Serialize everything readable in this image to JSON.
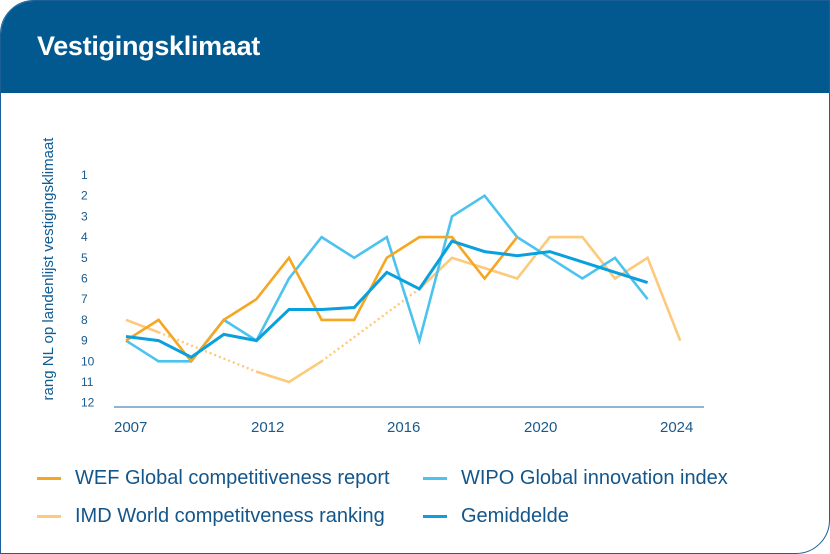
{
  "header": {
    "title": "Vestigingsklimaat"
  },
  "colors": {
    "header_bg": "#01598f",
    "wef": "#f5a623",
    "wipo": "#4cc3ee",
    "imd": "#fdc97a",
    "avg": "#0aa0de",
    "axis": "#6f9cc0",
    "text": "#14568a"
  },
  "chart_data": {
    "type": "line",
    "title": "Vestigingsklimaat",
    "ylabel": "rang NL op landenlijst vestigingsklimaat",
    "xlabel": "",
    "y_inverted": true,
    "ylim": [
      1,
      12
    ],
    "y_ticks": [
      "1",
      "2",
      "3",
      "4",
      "5",
      "6",
      "7",
      "8",
      "9",
      "10",
      "11",
      "12"
    ],
    "x_tick_labels": [
      "2007",
      "2012",
      "2016",
      "2020",
      "2024"
    ],
    "x": [
      2007,
      2008,
      2009,
      2010,
      2011,
      2012,
      2013,
      2014,
      2015,
      2016,
      2017,
      2018,
      2019,
      2020,
      2021,
      2022,
      2023,
      2024
    ],
    "legend_position": "bottom",
    "series": [
      {
        "name": "WEF Global competitiveness report",
        "key": "wef",
        "values": [
          9,
          8,
          10,
          8,
          7,
          5,
          8,
          8,
          5,
          4,
          4,
          6,
          4,
          null,
          null,
          null,
          null,
          null
        ]
      },
      {
        "name": "WIPO Global innovation index",
        "key": "wipo",
        "values": [
          9,
          10,
          10,
          8,
          9,
          6,
          4,
          5,
          4,
          9,
          3,
          2,
          4,
          5,
          6,
          5,
          7,
          null
        ]
      },
      {
        "name": "IMD World competitveness ranking",
        "key": "imd",
        "values": [
          8,
          8.6,
          null,
          null,
          10.5,
          11,
          10,
          null,
          null,
          6.5,
          5,
          5.5,
          6,
          4,
          4,
          6,
          5,
          9
        ],
        "dotted_gaps": [
          [
            2008,
            2011
          ],
          [
            2013,
            2016
          ],
          [
            2018,
            2019
          ]
        ]
      },
      {
        "name": "Gemiddelde",
        "key": "avg",
        "values": [
          8.8,
          9,
          9.8,
          8.7,
          9,
          7.5,
          7.5,
          7.4,
          5.7,
          6.5,
          4.2,
          4.7,
          4.9,
          4.7,
          5.2,
          5.7,
          6.2,
          null
        ]
      }
    ]
  },
  "legend": [
    {
      "label": "WEF Global competitiveness report",
      "key": "wef"
    },
    {
      "label": "WIPO Global innovation index",
      "key": "wipo"
    },
    {
      "label": "IMD World competitveness ranking",
      "key": "imd"
    },
    {
      "label": "Gemiddelde",
      "key": "avg"
    }
  ]
}
